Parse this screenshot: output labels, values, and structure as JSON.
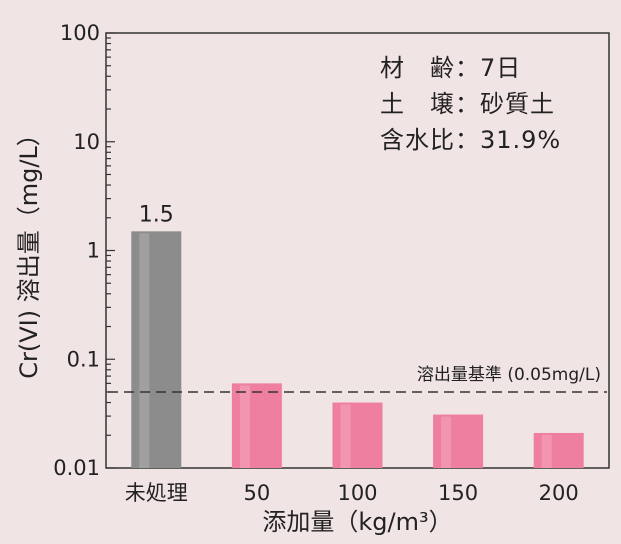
{
  "colors": {
    "background": "#f1e4e4",
    "untreated_bar": "#8c8c8c",
    "treated_bar": "#ef7f9f",
    "axis": "#333333",
    "threshold_line": "#333333"
  },
  "info": {
    "line1": "材　齢：7日",
    "line2": "土　壌：砂質土",
    "line3": "含水比：31.9%"
  },
  "chart_data": {
    "type": "bar",
    "title": "",
    "xlabel": "添加量（kg/m³）",
    "ylabel": "Cr(VI) 溶出量（mg/L）",
    "yscale": "log",
    "ylim": [
      0.01,
      100
    ],
    "yticks": [
      "0.01",
      "0.1",
      "1",
      "10",
      "100"
    ],
    "categories": [
      "未処理",
      "50",
      "100",
      "150",
      "200"
    ],
    "values": [
      1.5,
      0.06,
      0.04,
      0.031,
      0.021
    ],
    "data_labels": [
      "1.5",
      "",
      "",
      "",
      ""
    ],
    "threshold": {
      "value": 0.05,
      "label": "溶出量基準 (0.05mg/L)",
      "style": "dashed"
    },
    "grid": false,
    "legend": "none"
  }
}
